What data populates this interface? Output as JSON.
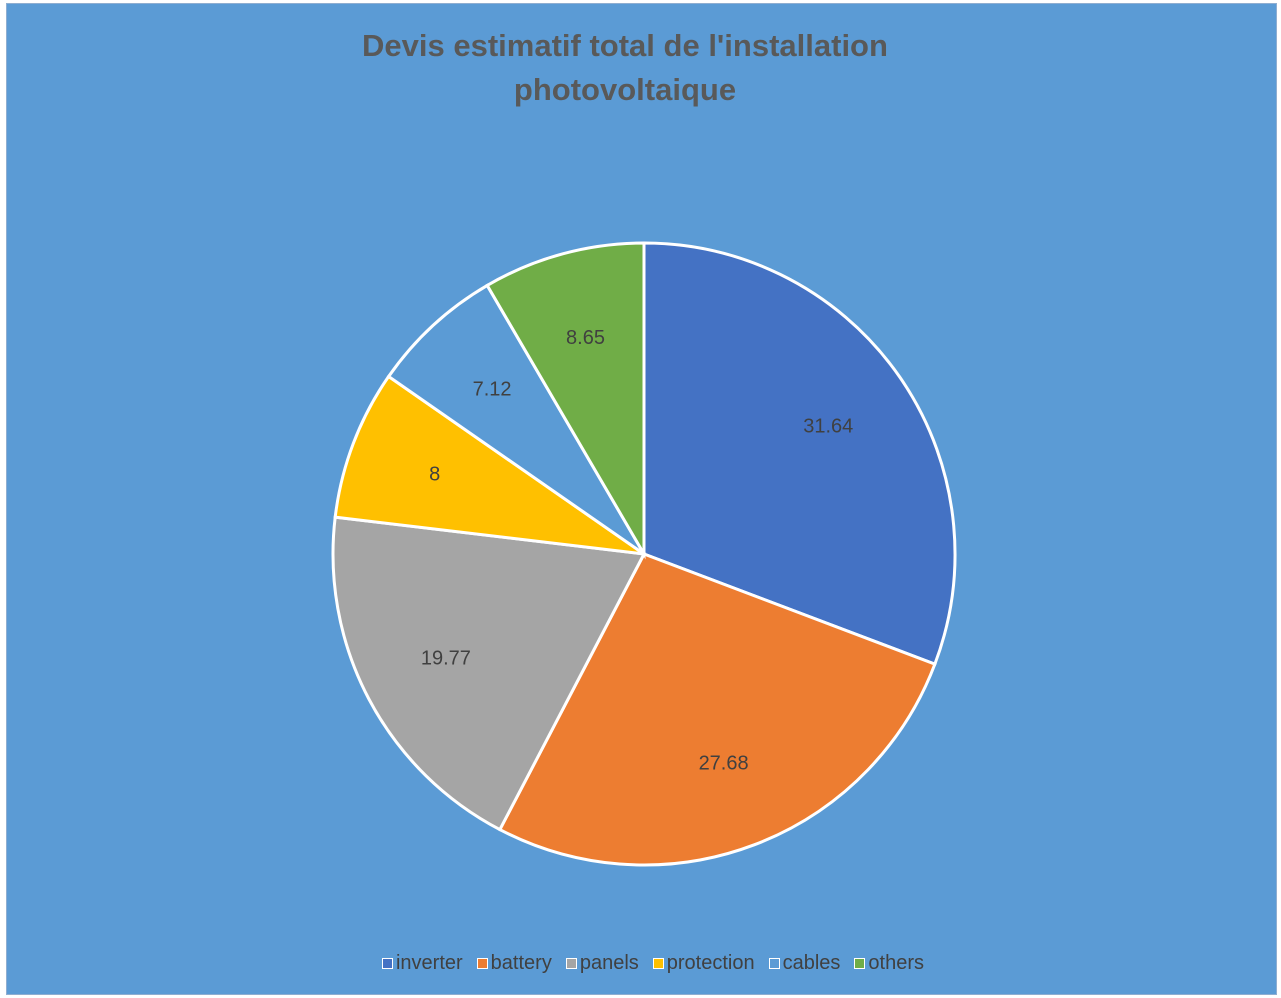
{
  "chart_data": {
    "type": "pie",
    "title": [
      "Devis estimatif total de l'installation",
      "photovoltaique"
    ],
    "categories": [
      "inverter",
      "battery",
      "panels",
      "protection",
      "cables",
      "others"
    ],
    "values": [
      31.64,
      27.68,
      19.77,
      8,
      7.12,
      8.65
    ],
    "value_labels": [
      "31.64",
      "27.68",
      "19.77",
      "8",
      "7.12",
      "8.65"
    ],
    "colors": [
      "#4472c4",
      "#ed7d31",
      "#a5a5a5",
      "#ffc000",
      "#5b9bd5",
      "#70ad47"
    ],
    "legend_position": "bottom",
    "start_angle_deg": 0,
    "direction": "clockwise"
  }
}
